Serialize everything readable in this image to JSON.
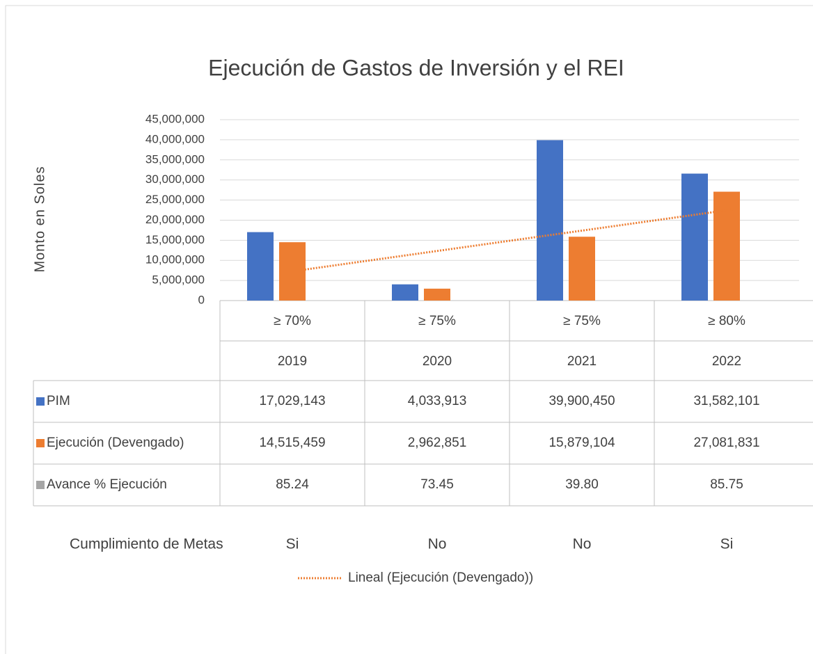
{
  "chart_data": {
    "type": "bar",
    "title": "Ejecución de Gastos de Inversión y el REI",
    "y_label": "Monto en Soles",
    "thresholds": [
      "≥ 70%",
      "≥ 75%",
      "≥ 75%",
      "≥ 80%"
    ],
    "categories": [
      "2019",
      "2020",
      "2021",
      "2022"
    ],
    "series": [
      {
        "name": "PIM",
        "color": "#4472c4",
        "values": [
          17029143,
          4033913,
          39900450,
          31582101
        ],
        "value_labels": [
          "17,029,143",
          "4,033,913",
          "39,900,450",
          "31,582,101"
        ]
      },
      {
        "name": "Ejecución (Devengado)",
        "color": "#ed7d31",
        "values": [
          14515459,
          2962851,
          15879104,
          27081831
        ],
        "value_labels": [
          "14,515,459",
          "2,962,851",
          "15,879,104",
          "27,081,831"
        ]
      },
      {
        "name": "Avance % Ejecución",
        "color": "#a5a5a5",
        "values": [
          85.24,
          73.45,
          39.8,
          85.75
        ],
        "value_labels": [
          "85.24",
          "73.45",
          "39.80",
          "85.75"
        ]
      }
    ],
    "trendline": {
      "name": "Lineal (Ejecución (Devengado))",
      "series": 1,
      "color": "#ed7d31"
    },
    "metas": {
      "label": "Cumplimiento de Metas",
      "values": [
        "Si",
        "No",
        "No",
        "Si"
      ]
    },
    "ylim": [
      0,
      45000000
    ],
    "yticks": [
      0,
      {
        "value": 5000000,
        "label": "5,000,000"
      },
      {
        "value": 10000000,
        "label": "10,000,000"
      },
      {
        "value": 15000000,
        "label": "15,000,000"
      },
      {
        "value": 20000000,
        "label": "20,000,000"
      },
      {
        "value": 25000000,
        "label": "25,000,000"
      },
      {
        "value": 30000000,
        "label": "30,000,000"
      },
      {
        "value": 35000000,
        "label": "35,000,000"
      },
      {
        "value": 40000000,
        "label": "40,000,000"
      },
      {
        "value": 45000000,
        "label": "45,000,000"
      }
    ],
    "grid": true
  }
}
